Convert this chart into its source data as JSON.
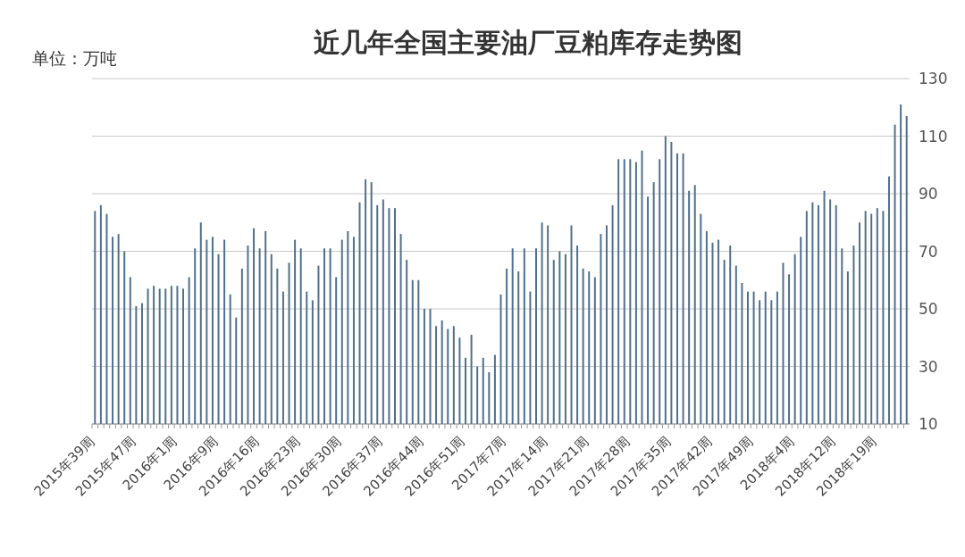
{
  "chart_data": {
    "type": "bar",
    "title": "近几年全国主要油厂豆粕库存走势图",
    "annotations": [
      "单位：万吨"
    ],
    "categories": [
      "2015年39周",
      null,
      null,
      null,
      null,
      null,
      null,
      "2015年47周",
      null,
      null,
      null,
      null,
      null,
      null,
      "2016年1周",
      null,
      null,
      null,
      null,
      null,
      null,
      "2016年9周",
      null,
      null,
      null,
      null,
      null,
      null,
      "2016年16周",
      null,
      null,
      null,
      null,
      null,
      null,
      "2016年23周",
      null,
      null,
      null,
      null,
      null,
      null,
      "2016年30周",
      null,
      null,
      null,
      null,
      null,
      null,
      "2016年37周",
      null,
      null,
      null,
      null,
      null,
      null,
      "2016年44周",
      null,
      null,
      null,
      null,
      null,
      null,
      "2016年51周",
      null,
      null,
      null,
      null,
      null,
      null,
      "2017年7周",
      null,
      null,
      null,
      null,
      null,
      null,
      "2017年14周",
      null,
      null,
      null,
      null,
      null,
      null,
      "2017年21周",
      null,
      null,
      null,
      null,
      null,
      null,
      "2017年28周",
      null,
      null,
      null,
      null,
      null,
      null,
      "2017年35周",
      null,
      null,
      null,
      null,
      null,
      null,
      "2017年42周",
      null,
      null,
      null,
      null,
      null,
      null,
      "2017年49周",
      null,
      null,
      null,
      null,
      null,
      null,
      "2018年4周",
      null,
      null,
      null,
      null,
      null,
      null,
      "2018年12周",
      null,
      null,
      null,
      null,
      null,
      null,
      "2018年19周",
      null,
      null,
      null,
      null,
      null
    ],
    "values": [
      84,
      86,
      83,
      75,
      76,
      70,
      61,
      51,
      52,
      57,
      58,
      57,
      57,
      58,
      58,
      57,
      61,
      71,
      80,
      74,
      75,
      69,
      74,
      55,
      47,
      64,
      72,
      78,
      71,
      77,
      69,
      64,
      56,
      66,
      74,
      71,
      56,
      53,
      65,
      71,
      71,
      61,
      74,
      77,
      75,
      87,
      95,
      94,
      86,
      88,
      85,
      85,
      76,
      67,
      60,
      60,
      50,
      50,
      44,
      46,
      43,
      44,
      40,
      33,
      41,
      30,
      33,
      28,
      34,
      55,
      64,
      71,
      63,
      71,
      56,
      71,
      80,
      79,
      67,
      70,
      69,
      79,
      72,
      64,
      63,
      61,
      76,
      79,
      86,
      102,
      102,
      102,
      101,
      105,
      89,
      94,
      102,
      110,
      108,
      104,
      104,
      91,
      93,
      83,
      77,
      73,
      74,
      67,
      72,
      65,
      59,
      56,
      56,
      53,
      56,
      53,
      56,
      66,
      62,
      69,
      75,
      84,
      87,
      86,
      91,
      88,
      86,
      71,
      63,
      72,
      80,
      84,
      83,
      85,
      84,
      96,
      114,
      121,
      117
    ],
    "color": "#4f6f8c",
    "ylim": [
      10,
      130
    ],
    "yticks": [
      10,
      30,
      50,
      70,
      90,
      110,
      130
    ],
    "grid": "y"
  }
}
